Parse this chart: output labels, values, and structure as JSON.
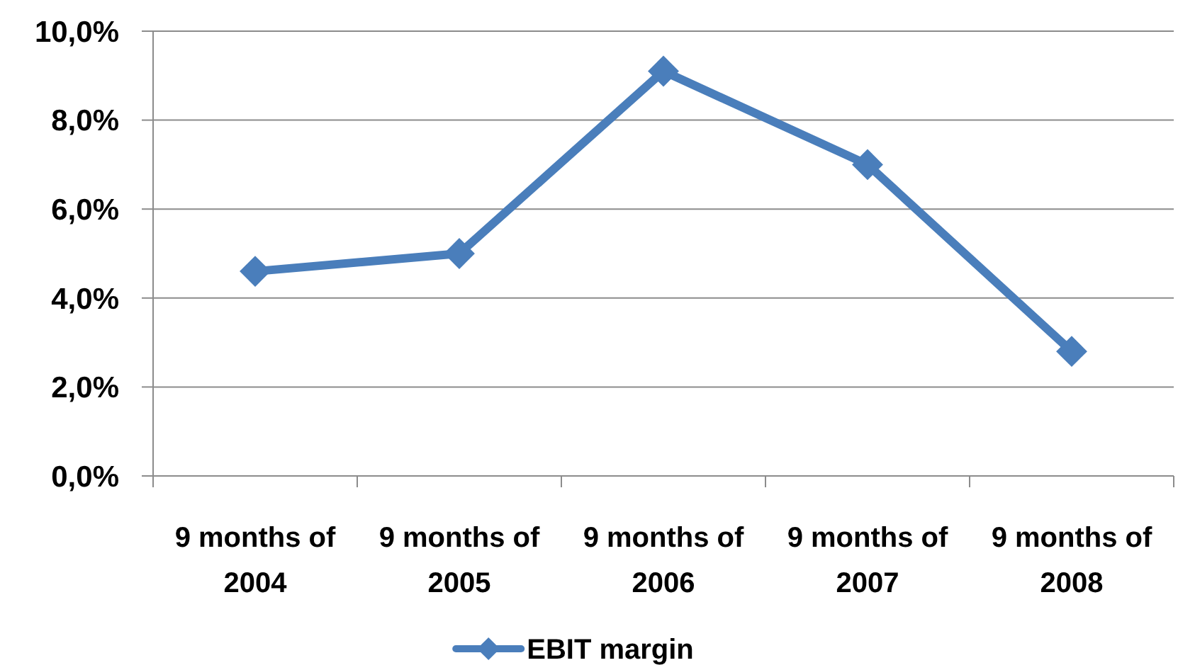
{
  "chart_data": {
    "type": "line",
    "categories": [
      "9 months of 2004",
      "9 months of 2005",
      "9 months of 2006",
      "9 months of 2007",
      "9 months of 2008"
    ],
    "series": [
      {
        "name": "EBIT margin",
        "color": "#4a7ebb",
        "values": [
          4.6,
          5.0,
          9.1,
          7.0,
          2.8
        ]
      }
    ],
    "ylim": [
      0,
      10
    ],
    "yticks": [
      {
        "value": 0,
        "label": "0,0%"
      },
      {
        "value": 2,
        "label": "2,0%"
      },
      {
        "value": 4,
        "label": "4,0%"
      },
      {
        "value": 6,
        "label": "6,0%"
      },
      {
        "value": 8,
        "label": "8,0%"
      },
      {
        "value": 10,
        "label": "10,0%"
      }
    ],
    "grid": "y",
    "legend": "bottom",
    "marker": "diamond"
  }
}
